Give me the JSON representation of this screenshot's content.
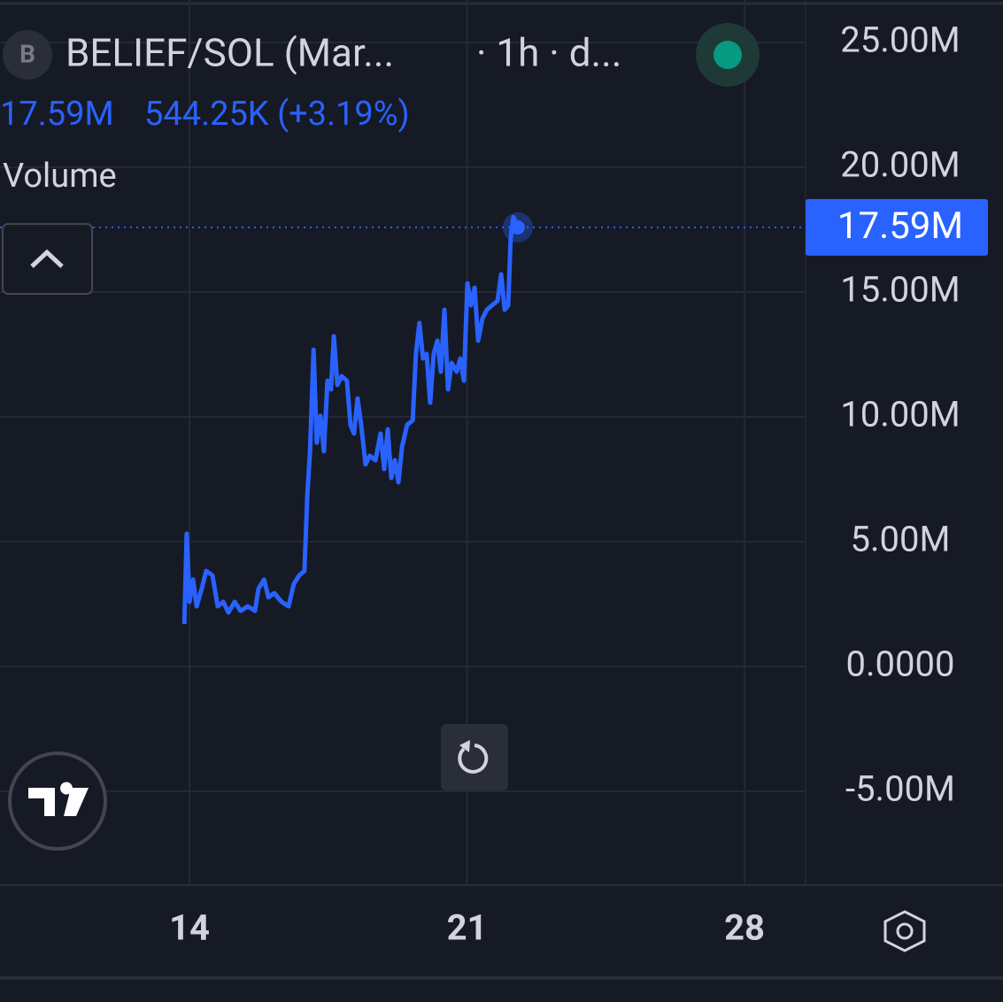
{
  "header": {
    "icon": "B",
    "symbol": "BELIEF/SOL (Mar...",
    "interval": "· 1h · d...",
    "price": "17.59M",
    "change": "544.25K (+3.19%)",
    "indicator": "Volume"
  },
  "chart_data": {
    "type": "line",
    "x": [
      13.87,
      13.93,
      14.0,
      14.09,
      14.18,
      14.31,
      14.42,
      14.58,
      14.71,
      14.85,
      14.98,
      15.14,
      15.29,
      15.47,
      15.65,
      15.74,
      15.88,
      15.99,
      16.14,
      16.32,
      16.5,
      16.63,
      16.77,
      16.9,
      16.97,
      17.04,
      17.13,
      17.21,
      17.3,
      17.39,
      17.48,
      17.57,
      17.64,
      17.73,
      17.84,
      17.97,
      18.06,
      18.15,
      18.24,
      18.33,
      18.44,
      18.55,
      18.69,
      18.82,
      18.91,
      19.0,
      19.09,
      19.18,
      19.27,
      19.36,
      19.49,
      19.63,
      19.71,
      19.8,
      19.89,
      19.98,
      20.07,
      20.16,
      20.25,
      20.34,
      20.43,
      20.52,
      20.61,
      20.74,
      20.83,
      20.92,
      21.01,
      21.1,
      21.19,
      21.28,
      21.39,
      21.5,
      21.63,
      21.77,
      21.86,
      21.95,
      22.04,
      22.1,
      22.17,
      22.28
    ],
    "series": [
      {
        "name": "BELIEF/SOL",
        "color": "#2962ff",
        "values": [
          1700000,
          5320000,
          2590000,
          3480000,
          2410000,
          3120000,
          3830000,
          3650000,
          2410000,
          2590000,
          2160000,
          2590000,
          2230000,
          2410000,
          2230000,
          3120000,
          3480000,
          2770000,
          2940000,
          2590000,
          2410000,
          3300000,
          3650000,
          3830000,
          6840000,
          8620000,
          12690000,
          8970000,
          10040000,
          8620000,
          11450000,
          11100000,
          13230000,
          11280000,
          11630000,
          11450000,
          9680000,
          9330000,
          10740000,
          9680000,
          8090000,
          8440000,
          8260000,
          9330000,
          7910000,
          9500000,
          7550000,
          8260000,
          7380000,
          8790000,
          9680000,
          9860000,
          12520000,
          13760000,
          12340000,
          12520000,
          10570000,
          12520000,
          13050000,
          11810000,
          14290000,
          11100000,
          12160000,
          11810000,
          12340000,
          11450000,
          15350000,
          14470000,
          15180000,
          13050000,
          13940000,
          14290000,
          14470000,
          14650000,
          15710000,
          14290000,
          14470000,
          17130000,
          18010000,
          17590000
        ]
      }
    ],
    "xlim": [
      9.22,
      29.54
    ],
    "xticks": [
      14,
      21,
      28
    ],
    "ylim": [
      -8760000,
      26700000
    ],
    "yticks": [
      {
        "value": -5000000,
        "label": "-5.00M"
      },
      {
        "value": 0,
        "label": "0.0000"
      },
      {
        "value": 5000000,
        "label": "5.00M"
      },
      {
        "value": 10000000,
        "label": "10.00M"
      },
      {
        "value": 15000000,
        "label": "15.00M"
      },
      {
        "value": 20000000,
        "label": "20.00M"
      },
      {
        "value": 25000000,
        "label": "25.00M"
      }
    ],
    "grid": true
  }
}
